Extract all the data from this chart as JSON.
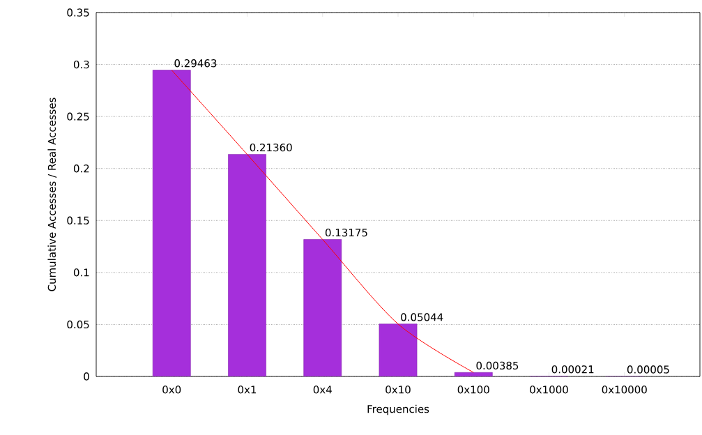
{
  "chart_data": {
    "type": "bar",
    "xlabel": "Frequencies",
    "ylabel": "Cumulative Accesses / Real Accesses",
    "categories": [
      "0x0",
      "0x1",
      "0x4",
      "0x10",
      "0x100",
      "0x1000",
      "0x10000"
    ],
    "series": [
      {
        "color": "#a52fdb",
        "values": [
          0.29463,
          0.2136,
          0.13175,
          0.05044,
          0.00385,
          0.00021,
          5e-05
        ],
        "value_labels": [
          "0.29463",
          "0.21360",
          "0.13175",
          "0.05044",
          "0.00385",
          "0.00021",
          "0.00005"
        ]
      },
      {
        "type": "line",
        "color": "#ff0000",
        "values": [
          0.29463,
          0.2136,
          0.13175,
          0.05044,
          0.00385,
          null,
          null
        ]
      }
    ],
    "ylim": [
      0,
      0.35
    ],
    "yticks": [
      0,
      0.05,
      0.1,
      0.15,
      0.2,
      0.25,
      0.3,
      0.35
    ],
    "grid": "y"
  }
}
